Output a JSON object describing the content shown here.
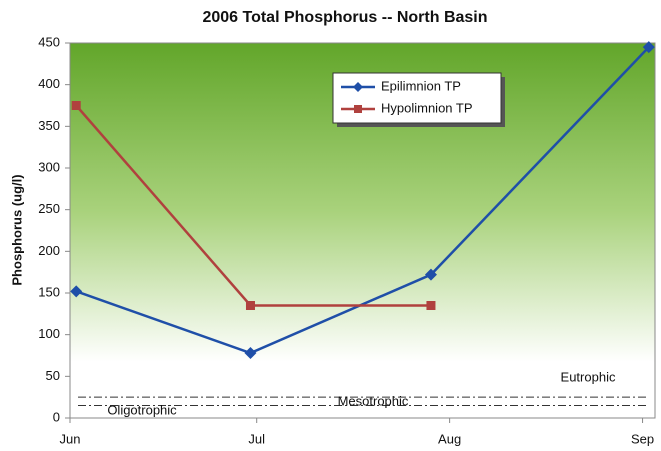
{
  "chart_data": {
    "type": "line",
    "title": "2006 Total Phosphorus -- North Basin",
    "y_label": "Phosphorus (ug/l)",
    "xlim": [
      0,
      94
    ],
    "xticks": [
      {
        "value": 0,
        "label": "Jun"
      },
      {
        "value": 30,
        "label": "Jul"
      },
      {
        "value": 61,
        "label": "Aug"
      },
      {
        "value": 92,
        "label": "Sep"
      }
    ],
    "ylim": [
      0,
      450
    ],
    "yticks": [
      0,
      50,
      100,
      150,
      200,
      250,
      300,
      350,
      400,
      450
    ],
    "grid": false,
    "legend": "upper center",
    "series": [
      {
        "name": "Epilimnion TP",
        "color": "#1f4fa8",
        "marker": "diamond",
        "x": [
          1,
          29,
          58,
          93
        ],
        "values": [
          152,
          78,
          172,
          445
        ]
      },
      {
        "name": "Hypolimnion TP",
        "color": "#b0413e",
        "marker": "square",
        "x": [
          1,
          29,
          58
        ],
        "values": [
          375,
          135,
          135
        ]
      }
    ],
    "reference_lines": [
      {
        "value": 15
      },
      {
        "value": 25
      }
    ],
    "annotations": [
      "Eutrophic",
      "Mesotrophic",
      "Oligotrophic"
    ]
  }
}
